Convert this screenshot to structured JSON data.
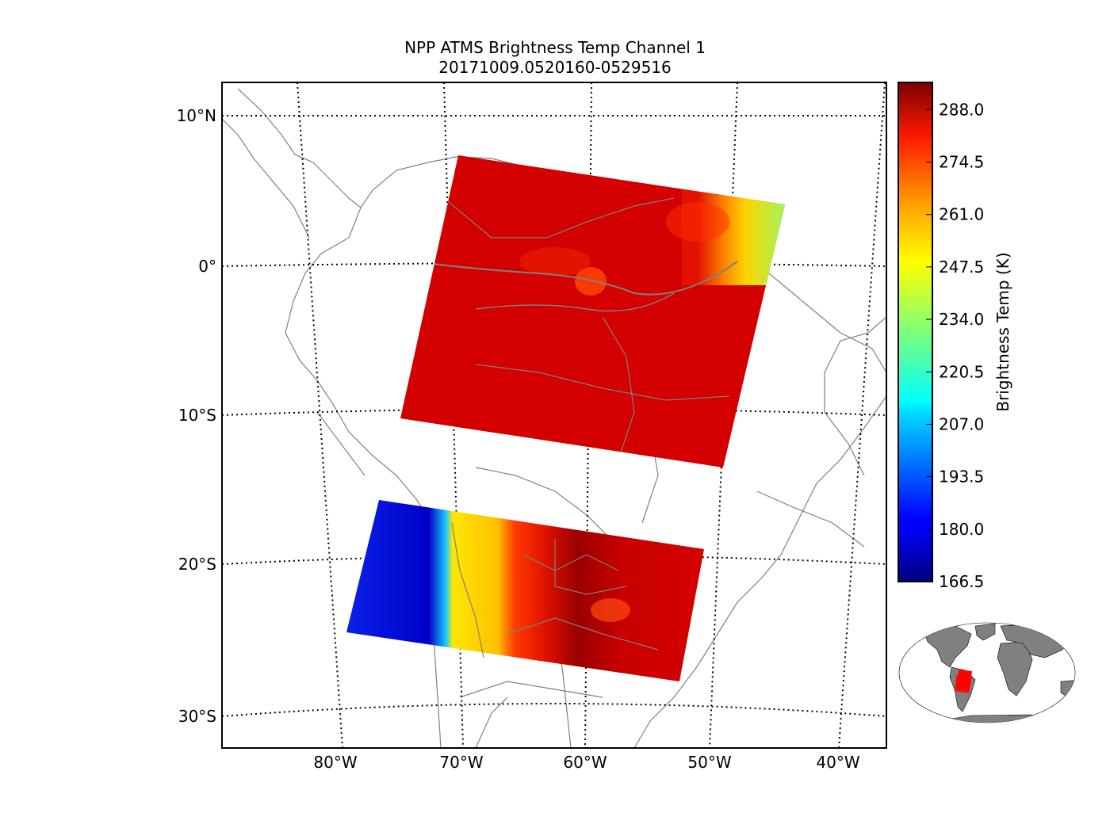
{
  "title_line1": "NPP ATMS Brightness Temp Channel 1",
  "title_line2": "20171009.0520160-0529516",
  "lat_labels": [
    "10°N",
    "0°",
    "10°S",
    "20°S",
    "30°S"
  ],
  "lon_labels": [
    "80°W",
    "70°W",
    "60°W",
    "50°W",
    "40°W"
  ],
  "colorbar": {
    "label": "Brightness Temp (K)",
    "min": 166.5,
    "max": 295.0,
    "ticks": [
      "288.0",
      "274.5",
      "261.0",
      "247.5",
      "234.0",
      "220.5",
      "207.0",
      "193.5",
      "180.0",
      "166.5"
    ],
    "colormap": "jet"
  },
  "colors": {
    "swath_north": "#d40000",
    "swath_dark": "#8b0000",
    "land_outline": "#808080",
    "inset_land": "#808080",
    "inset_swath": "#ff0000"
  }
}
